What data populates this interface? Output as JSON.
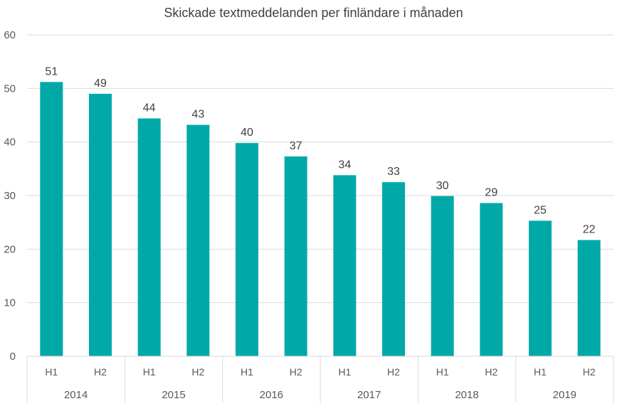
{
  "chart_data": {
    "type": "bar",
    "title": "Skickade textmeddelanden per finländare i månaden",
    "xlabel": "",
    "ylabel": "",
    "ylim": [
      0,
      60
    ],
    "yticks": [
      0,
      10,
      20,
      30,
      40,
      50,
      60
    ],
    "grid": true,
    "categories": [
      "H1",
      "H2",
      "H1",
      "H2",
      "H1",
      "H2",
      "H1",
      "H2",
      "H1",
      "H2",
      "H1",
      "H2"
    ],
    "groups": [
      {
        "label": "2014",
        "categories": [
          "H1",
          "H2"
        ]
      },
      {
        "label": "2015",
        "categories": [
          "H1",
          "H2"
        ]
      },
      {
        "label": "2016",
        "categories": [
          "H1",
          "H2"
        ]
      },
      {
        "label": "2017",
        "categories": [
          "H1",
          "H2"
        ]
      },
      {
        "label": "2018",
        "categories": [
          "H1",
          "H2"
        ]
      },
      {
        "label": "2019",
        "categories": [
          "H1",
          "H2"
        ]
      }
    ],
    "values": [
      51.2,
      49,
      44.4,
      43.2,
      39.8,
      37.3,
      33.8,
      32.5,
      29.9,
      28.6,
      25.3,
      21.7
    ],
    "data_labels": [
      "51",
      "49",
      "44",
      "43",
      "40",
      "37",
      "34",
      "33",
      "30",
      "29",
      "25",
      "22"
    ],
    "bar_color": "#00A9A8",
    "grid_color": "#D9D9D9",
    "text_color": "#595959"
  }
}
